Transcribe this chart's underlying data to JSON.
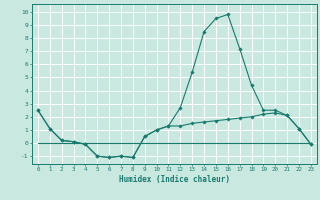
{
  "xlabel": "Humidex (Indice chaleur)",
  "bg_color": "#c8e8e0",
  "grid_color": "#ffffff",
  "line_color": "#1a7a6e",
  "xlim": [
    -0.5,
    23.5
  ],
  "ylim": [
    -1.6,
    10.6
  ],
  "xticks": [
    0,
    1,
    2,
    3,
    4,
    5,
    6,
    7,
    8,
    9,
    10,
    11,
    12,
    13,
    14,
    15,
    16,
    17,
    18,
    19,
    20,
    21,
    22,
    23
  ],
  "yticks": [
    -1,
    0,
    1,
    2,
    3,
    4,
    5,
    6,
    7,
    8,
    9,
    10
  ],
  "curve1_x": [
    0,
    1,
    2,
    3,
    4,
    5,
    6,
    7,
    8,
    9,
    10,
    11,
    12,
    13,
    14,
    15,
    16,
    17,
    18,
    19,
    20,
    21,
    22,
    23
  ],
  "curve1_y": [
    2.5,
    1.1,
    0.2,
    0.1,
    -0.1,
    -1.0,
    -1.1,
    -1.0,
    -1.1,
    0.5,
    1.0,
    1.3,
    2.7,
    5.4,
    8.5,
    9.5,
    9.8,
    7.2,
    4.4,
    2.5,
    2.5,
    2.1,
    1.1,
    -0.1
  ],
  "curve2_x": [
    0,
    1,
    2,
    3,
    4,
    5,
    6,
    7,
    8,
    9,
    10,
    11,
    12,
    13,
    14,
    15,
    16,
    17,
    18,
    19,
    20,
    21,
    22,
    23
  ],
  "curve2_y": [
    2.5,
    1.1,
    0.2,
    0.1,
    -0.1,
    -1.0,
    -1.1,
    -1.0,
    -1.1,
    0.5,
    1.0,
    1.3,
    1.3,
    1.5,
    1.6,
    1.7,
    1.8,
    1.9,
    2.0,
    2.2,
    2.3,
    2.1,
    1.1,
    -0.1
  ],
  "curve3_x": [
    0,
    23
  ],
  "curve3_y": [
    0.0,
    0.0
  ]
}
